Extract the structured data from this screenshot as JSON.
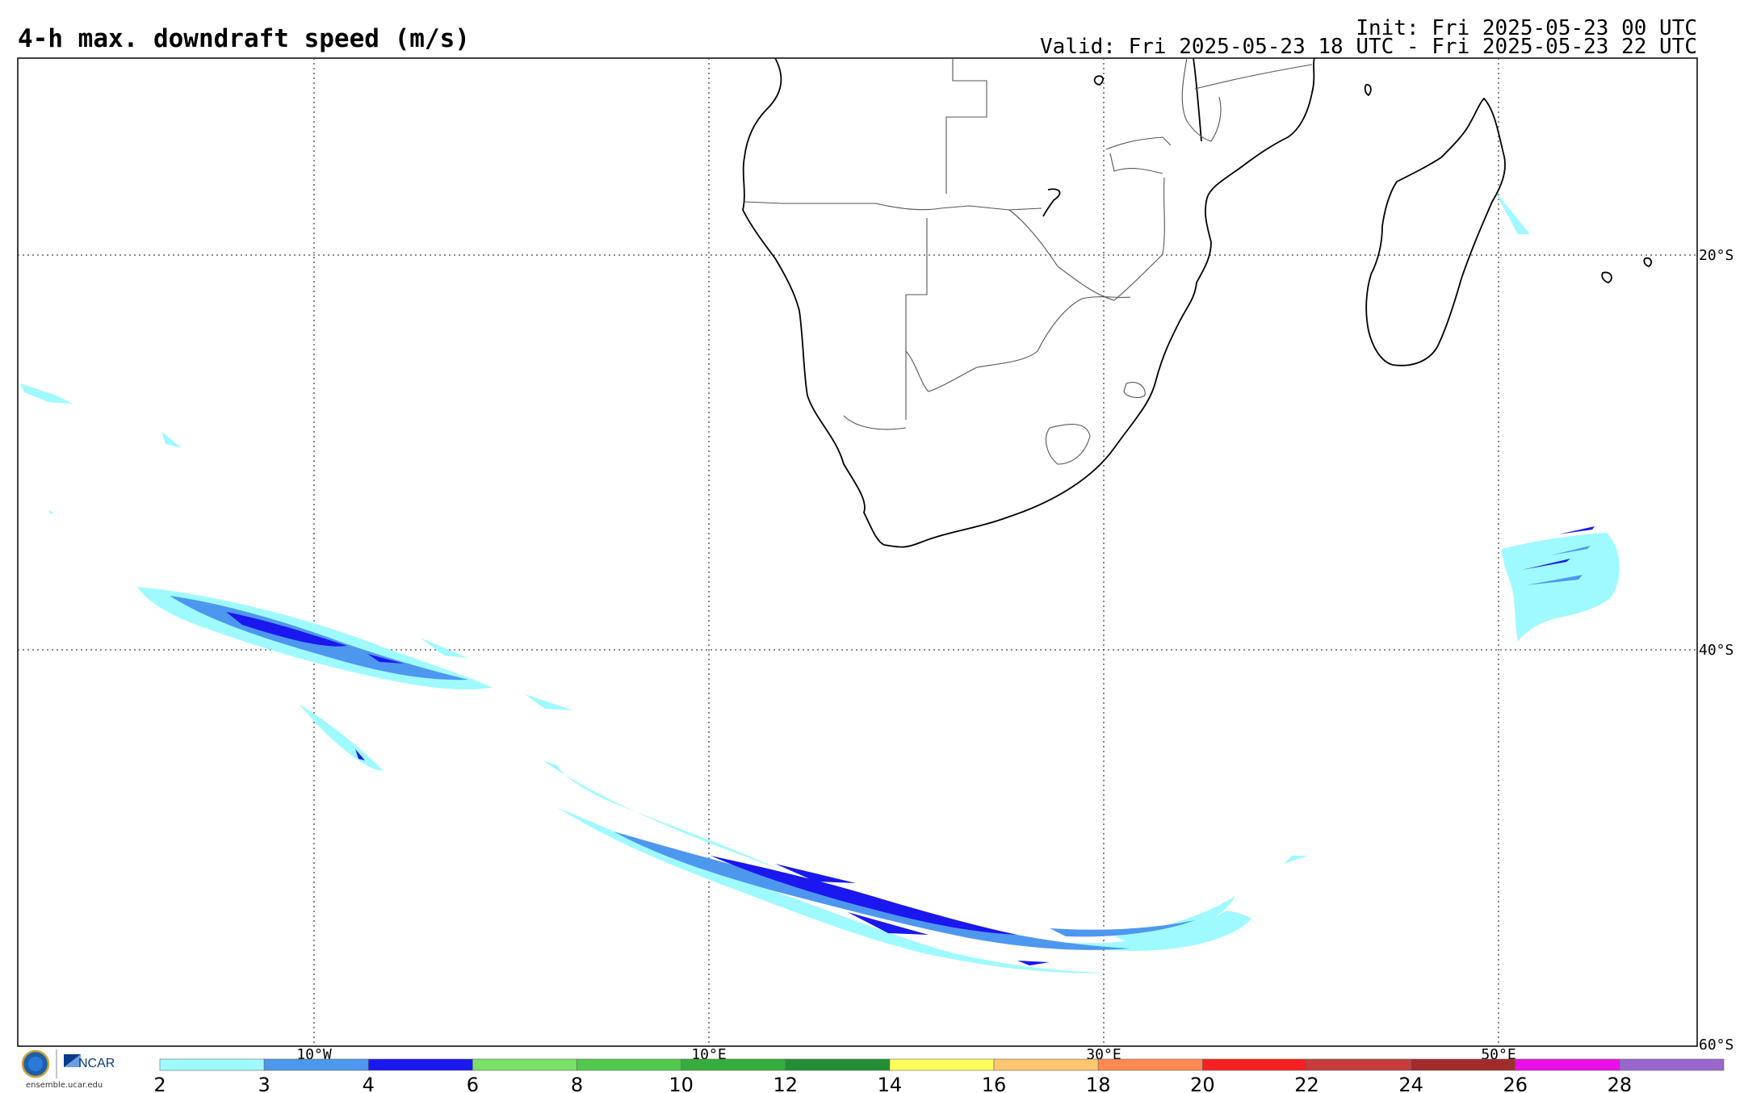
{
  "title": "4-h max. downdraft speed (m/s)",
  "init": "Init: Fri 2025-05-23 00 UTC",
  "valid": "Valid: Fri 2025-05-23 18 UTC - Fri 2025-05-23 22 UTC",
  "lon_labels": [
    "10°W",
    "10°E",
    "30°E",
    "50°E"
  ],
  "lat_labels": [
    "20°S",
    "40°S",
    "60°S"
  ],
  "colorbar": {
    "ticks": [
      "2",
      "3",
      "4",
      "6",
      "8",
      "10",
      "12",
      "14",
      "16",
      "18",
      "20",
      "22",
      "24",
      "26",
      "28"
    ],
    "colors": [
      "#9ffaff",
      "#4e97ef",
      "#1a17ef",
      "#7ae06a",
      "#52c94e",
      "#34ad3c",
      "#238f34",
      "#fefe5b",
      "#fec66e",
      "#fe8a52",
      "#f72020",
      "#c73c3c",
      "#a02c2c",
      "#e90fe9",
      "#9966cc"
    ]
  },
  "logo": {
    "org": "NCAR",
    "url": "ensemble.ucar.edu"
  }
}
